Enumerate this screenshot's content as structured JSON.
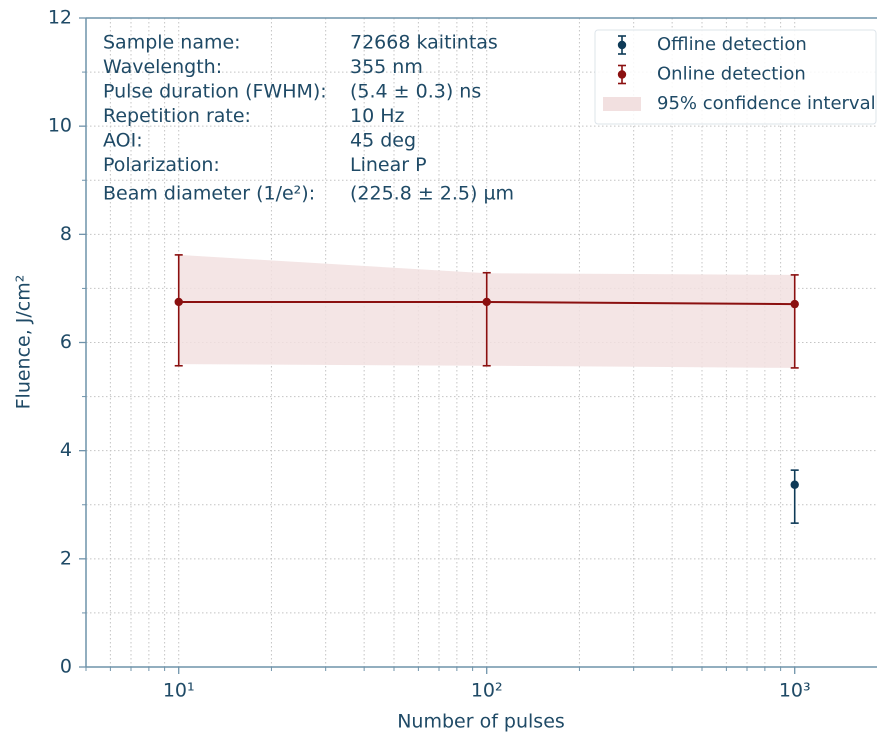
{
  "chart_data": {
    "type": "errorbar",
    "xlabel": "Number of pulses",
    "ylabel": "Fluence, J/cm²",
    "xscale": "log",
    "xlim": [
      5,
      1850
    ],
    "ylim": [
      0,
      12
    ],
    "xticks": [
      {
        "value": 10,
        "label": "10¹"
      },
      {
        "value": 100,
        "label": "10²"
      },
      {
        "value": 1000,
        "label": "10³"
      }
    ],
    "xminorticks": [
      5,
      6,
      7,
      8,
      9,
      20,
      30,
      40,
      50,
      60,
      70,
      80,
      90,
      200,
      300,
      400,
      500,
      600,
      700,
      800,
      900
    ],
    "yticks": [
      0,
      2,
      4,
      6,
      8,
      10,
      12
    ],
    "yminorticks": [
      1,
      3,
      5,
      7,
      9,
      11
    ],
    "grid": true,
    "legend_loc": "upper right",
    "axis_color": "#6f93aa",
    "series": [
      {
        "name": "Offline detection",
        "color": "#0e3a57",
        "x": [
          1000
        ],
        "values": [
          3.37
        ],
        "lower": [
          2.66
        ],
        "upper": [
          3.64
        ]
      },
      {
        "name": "Online detection",
        "color": "#8b1010",
        "x": [
          10,
          100,
          1000
        ],
        "values": [
          6.75,
          6.75,
          6.71
        ],
        "lower": [
          5.57,
          5.57,
          5.53
        ],
        "upper": [
          7.62,
          7.29,
          7.25
        ]
      }
    ],
    "band": {
      "name": "95% confidence interval",
      "color": "#f2e0e0",
      "x": [
        10,
        100,
        1000
      ],
      "lower": [
        5.6,
        5.57,
        5.53
      ],
      "upper": [
        7.62,
        7.28,
        7.25
      ]
    },
    "info": [
      {
        "label": "Sample name:",
        "value": "72668 kaitintas"
      },
      {
        "label": "Wavelength:",
        "value": "355 nm"
      },
      {
        "label": "Pulse duration (FWHM):",
        "value": "(5.4 ± 0.3) ns"
      },
      {
        "label": "Repetition rate:",
        "value": "10 Hz"
      },
      {
        "label": "AOI:",
        "value": "45 deg"
      },
      {
        "label": "Polarization:",
        "value": "Linear P"
      },
      {
        "label": "Beam diameter (1/e²):",
        "value": "(225.8 ± 2.5) µm"
      }
    ]
  }
}
